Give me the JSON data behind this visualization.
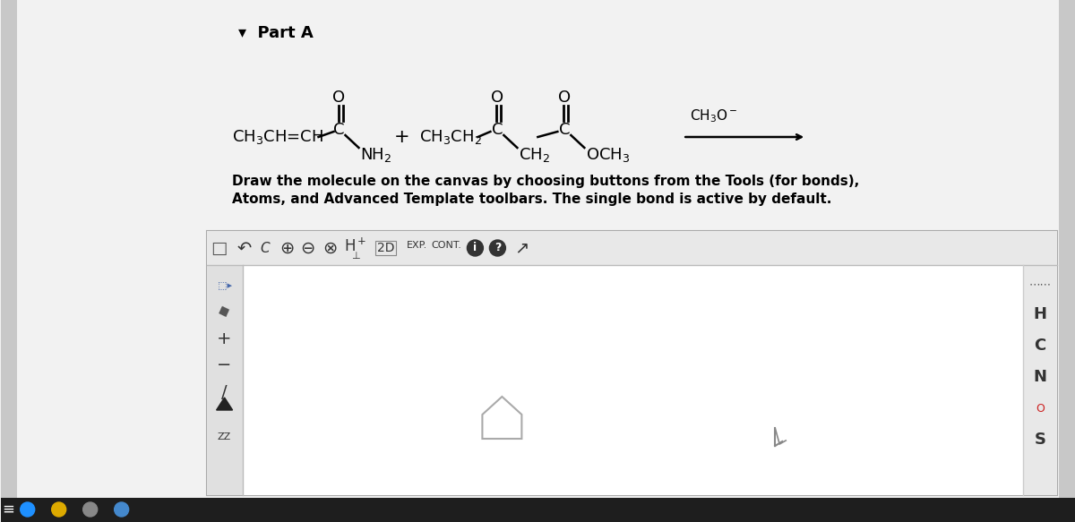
{
  "bg_left": "#e8e8e8",
  "bg_right": "#f0f0f0",
  "page_bg": "#f2f2f2",
  "part_a_label": "▾  Part A",
  "instruction_text_line1": "Draw the molecule on the canvas by choosing buttons from the Tools (for bonds),",
  "instruction_text_line2": "Atoms, and Advanced Template toolbars. The single bond is active by default.",
  "canvas_bg": "#ffffff",
  "canvas_border": "#cccccc",
  "toolbar_bg": "#f0f0f0",
  "sidebar_bg": "#e8e8e8",
  "text_color": "#000000",
  "chem_color": "#000000",
  "taskbar_color": "#1a1a1a",
  "right_sidebar_letters": [
    "H",
    "C",
    "N",
    "O",
    "S"
  ],
  "left_sidebar_icons": [
    "■▶",
    "◆",
    "+",
    "−",
    "/",
    "ZZ"
  ],
  "toolbar_icons": [
    "□",
    "↶",
    "C",
    "⊕",
    "⊖",
    "⊗",
    "H⁺",
    "⊕",
    "2D",
    "EXP.",
    "CONT.",
    "ℹ",
    "?",
    "↗"
  ]
}
